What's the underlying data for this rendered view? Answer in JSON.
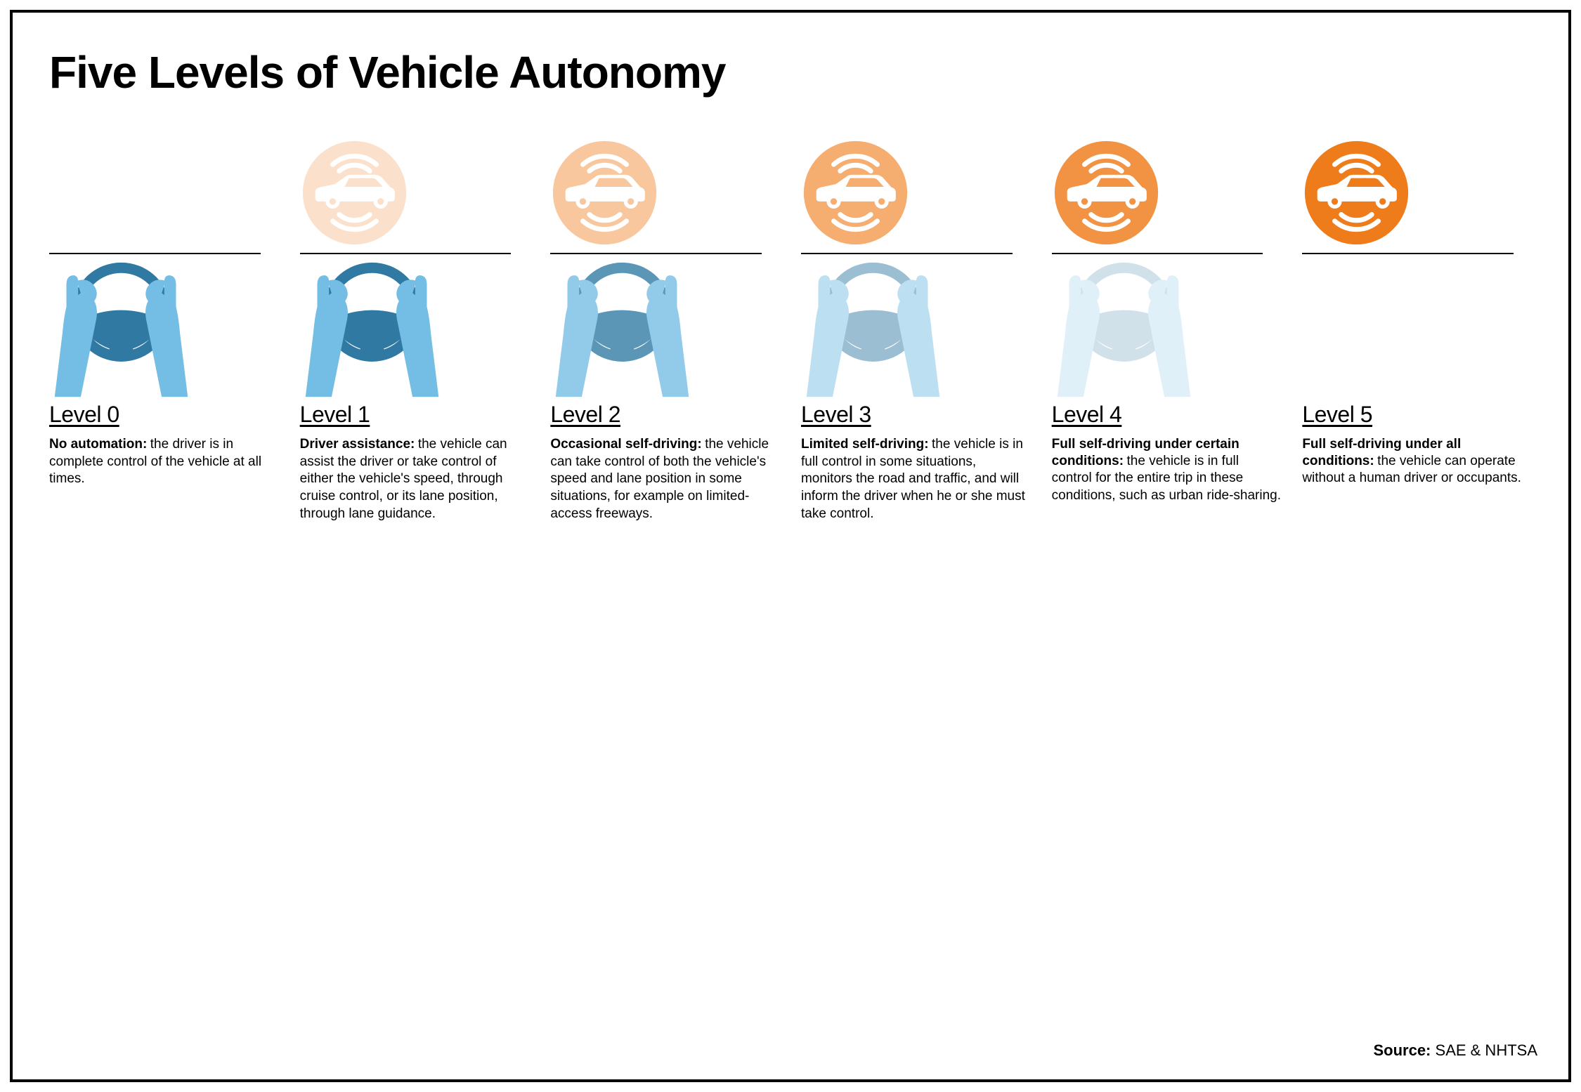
{
  "title": "Five Levels of Vehicle Autonomy",
  "source_label": "Source:",
  "source_value": "SAE & NHTSA",
  "colors": {
    "car_base": "#ef7c1a",
    "wheel_dark": "#2f79a3",
    "wheel_light": "#74bde4",
    "black": "#000000",
    "white": "#ffffff"
  },
  "levels": [
    {
      "name": "Level 0",
      "subtitle": "No automation:",
      "desc": "the driver is in complete control of the vehicle at all times.",
      "show_car": false,
      "car_opacity": 0,
      "show_wheel": true,
      "wheel_opacity": 1.0
    },
    {
      "name": "Level 1",
      "subtitle": "Driver assistance:",
      "desc": "the vehicle can assist the driver or take control of either the vehicle's speed, through cruise control, or its lane position, through lane guidance.",
      "show_car": true,
      "car_opacity": 0.22,
      "show_wheel": true,
      "wheel_opacity": 1.0
    },
    {
      "name": "Level 2",
      "subtitle": "Occasional self-driving:",
      "desc": "the vehicle can take control of both the vehicle's speed and lane position in some situations, for example on limited-access freeways.",
      "show_car": true,
      "car_opacity": 0.42,
      "show_wheel": true,
      "wheel_opacity": 0.78
    },
    {
      "name": "Level 3",
      "subtitle": "Limited self-driving:",
      "desc": "the vehicle is in full control in some situations, monitors the road and traffic, and will inform the driver when he or she must take control.",
      "show_car": true,
      "car_opacity": 0.62,
      "show_wheel": true,
      "wheel_opacity": 0.48
    },
    {
      "name": "Level 4",
      "subtitle": "Full self-driving under certain conditions:",
      "desc": "the vehicle is in full control for the entire trip in these conditions, such as urban ride-sharing.",
      "show_car": true,
      "car_opacity": 0.82,
      "show_wheel": true,
      "wheel_opacity": 0.22
    },
    {
      "name": "Level 5",
      "subtitle": "Full self-driving under all conditions:",
      "desc": "the vehicle can operate without a human driver or occupants.",
      "show_car": true,
      "car_opacity": 1.0,
      "show_wheel": false,
      "wheel_opacity": 0
    }
  ]
}
